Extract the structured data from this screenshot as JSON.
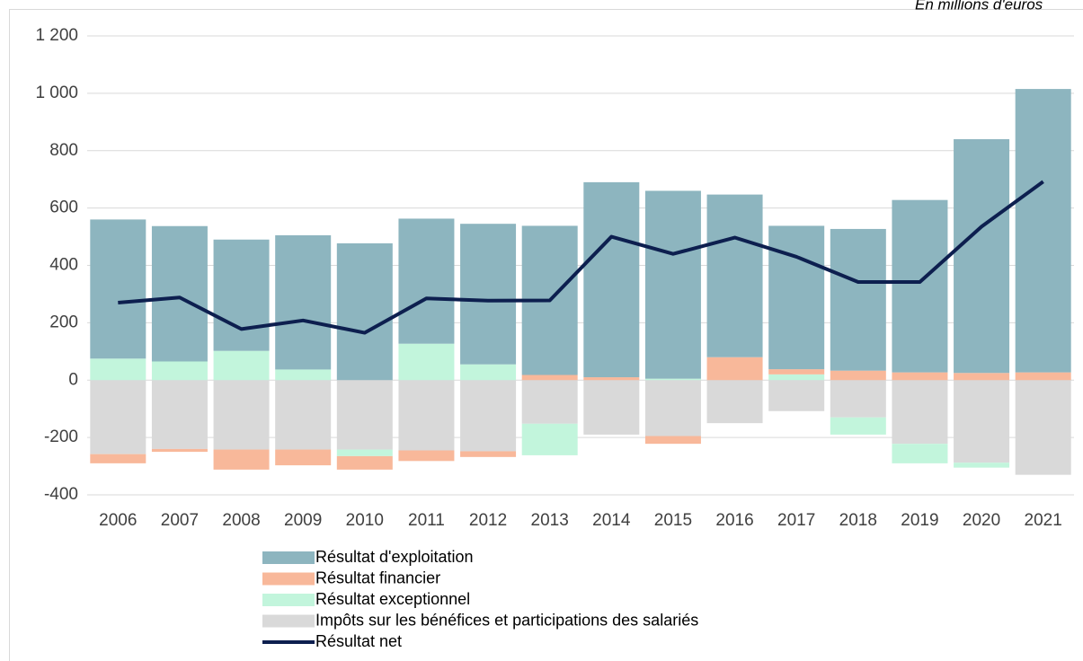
{
  "chart_data": {
    "type": "bar",
    "subtitle": "En millions d'euros",
    "categories": [
      "2006",
      "2007",
      "2008",
      "2009",
      "2010",
      "2011",
      "2012",
      "2013",
      "2014",
      "2015",
      "2016",
      "2017",
      "2018",
      "2019",
      "2020",
      "2021"
    ],
    "series": [
      {
        "name": "Résultat d'exploitation",
        "color": "#8db5bf",
        "values": [
          485,
          472,
          388,
          468,
          477,
          436,
          490,
          520,
          680,
          655,
          567,
          500,
          494,
          601,
          815,
          988
        ]
      },
      {
        "name": "Résultat financier",
        "color": "#f8b89a",
        "values": [
          -32,
          -10,
          -70,
          -55,
          -47,
          -37,
          -20,
          18,
          10,
          -27,
          80,
          18,
          33,
          27,
          25,
          27
        ]
      },
      {
        "name": "Résultat exceptionnel",
        "color": "#c2f5dc",
        "values": [
          75,
          65,
          102,
          37,
          -23,
          127,
          55,
          -110,
          0,
          5,
          0,
          20,
          -60,
          -68,
          -17,
          0
        ]
      },
      {
        "name": "Impôts sur les bénéfices et participations des salariés",
        "color": "#d9d9d9",
        "values": [
          -258,
          -240,
          -242,
          -242,
          -242,
          -245,
          -248,
          -152,
          -190,
          -195,
          -150,
          -108,
          -130,
          -222,
          -288,
          -330
        ]
      },
      {
        "name": "Résultat net",
        "type": "line",
        "color": "#0d1f4f",
        "values": [
          270,
          288,
          178,
          208,
          165,
          285,
          277,
          278,
          500,
          440,
          497,
          430,
          342,
          342,
          535,
          692
        ]
      }
    ],
    "ylim": [
      -400,
      1200
    ],
    "yticks": [
      {
        "value": -400,
        "label": "-400"
      },
      {
        "value": -200,
        "label": "-200"
      },
      0,
      200,
      400,
      600,
      800,
      {
        "value": 1000,
        "label": "1 000"
      },
      {
        "value": 1200,
        "label": "1 200"
      }
    ],
    "grid": true
  }
}
